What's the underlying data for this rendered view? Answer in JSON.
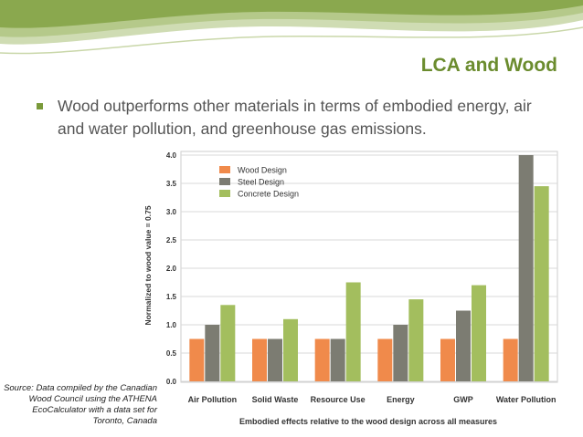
{
  "slide": {
    "title": "LCA and Wood",
    "bullet": "Wood outperforms other materials in terms of embodied energy, air and water pollution, and greenhouse gas emissions.",
    "source": "Source: Data compiled by the Canadian Wood Council using the ATHENA EcoCalculator with a data set for Toronto, Canada"
  },
  "colors": {
    "title": "#6b8c2e",
    "wood": "#f08a4b",
    "steel": "#7c7c72",
    "concrete": "#a3be5e"
  },
  "chart_data": {
    "type": "bar",
    "title": "",
    "xlabel": "Embodied effects relative to the wood design across all measures",
    "ylabel": "Normalized to wood value = 0.75",
    "ylim": [
      0,
      4.0
    ],
    "yticks": [
      "0.0",
      "0.5",
      "1.0",
      "1.5",
      "2.0",
      "2.5",
      "3.0",
      "3.5",
      "4.0"
    ],
    "grid": true,
    "legend_position": "top-left",
    "categories": [
      "Air Pollution",
      "Solid Waste",
      "Resource Use",
      "Energy",
      "GWP",
      "Water Pollution"
    ],
    "series": [
      {
        "name": "Wood Design",
        "color": "#f08a4b",
        "values": [
          0.75,
          0.75,
          0.75,
          0.75,
          0.75,
          0.75
        ]
      },
      {
        "name": "Steel Design",
        "color": "#7c7c72",
        "values": [
          1.0,
          0.75,
          0.75,
          1.0,
          1.25,
          4.0
        ]
      },
      {
        "name": "Concrete Design",
        "color": "#a3be5e",
        "values": [
          1.35,
          1.1,
          1.75,
          1.45,
          1.7,
          3.45
        ]
      }
    ]
  }
}
